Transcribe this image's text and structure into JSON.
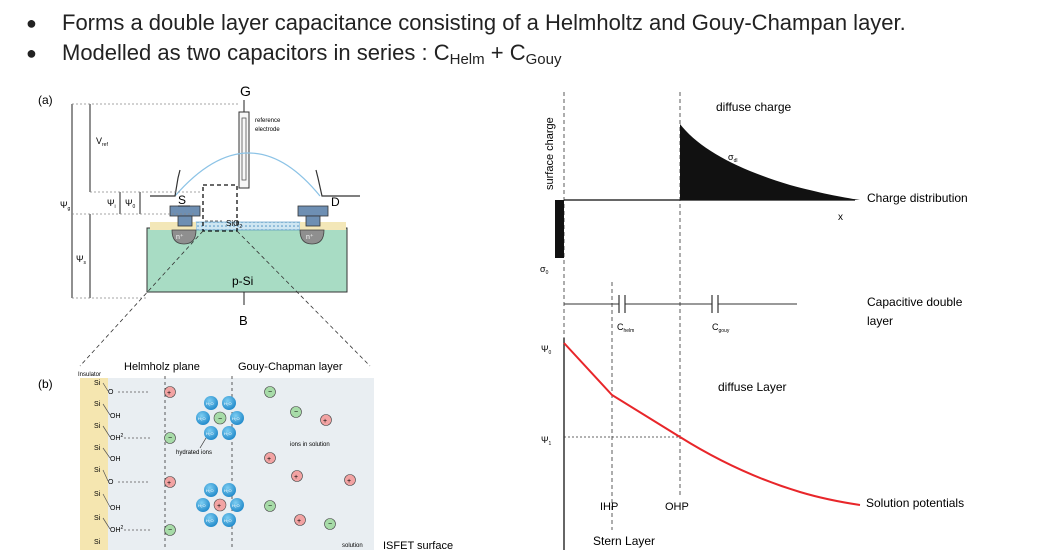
{
  "bullets": [
    {
      "text": "Forms a double layer capacitance consisting of a Helmholtz and Gouy-Champan layer."
    },
    {
      "text_prefix": "Modelled as two capacitors in series : C",
      "sub1": "Helm",
      "mid": " + C",
      "sub2": "Gouy"
    }
  ],
  "panel_a": {
    "label": "(a)",
    "gate": "G",
    "ref_electrode": "reference electrode",
    "vref": "V",
    "vref_sub": "ref",
    "psi_g": "Ψ",
    "psi_g_sub": "g",
    "psi_i": "Ψ",
    "psi_i_sub": "i",
    "psi_0": "Ψ",
    "psi_0_sub": "0",
    "psi_s": "Ψ",
    "psi_s_sub": "s",
    "source": "S",
    "drain": "D",
    "oxide": "SiO",
    "oxide_sub": "2",
    "n_left": "n⁺",
    "n_right": "n⁺",
    "substrate": "p-Si",
    "bulk": "B"
  },
  "panel_b": {
    "label": "(b)",
    "insulator": "Insulator",
    "helmholtz": "Helmholz plane",
    "gouy": "Gouy-Chapman layer",
    "hydrated": "hydrated ions",
    "ions": "ions in solution",
    "solution": "solution",
    "isfet": "ISFET surface",
    "si": "Si",
    "oh": "OH",
    "oh2": "OH",
    "oh2_sub": "2",
    "o": "O",
    "water": "H₂O"
  },
  "panel_c": {
    "surface_charge": "surface charge",
    "diffuse_charge": "diffuse charge",
    "sigma_dl": "σ",
    "sigma_dl_sub": "dl",
    "sigma_0": "σ",
    "sigma_0_sub": "0",
    "x": "x",
    "charge_distribution": "Charge distribution",
    "c_helm": "C",
    "c_helm_sub": "helm",
    "c_gouy": "C",
    "c_gouy_sub": "gouy",
    "capacitive_1": "Capacitive double",
    "capacitive_2": "layer",
    "psi_0": "Ψ",
    "psi_0_sub": "0",
    "psi_1": "Ψ",
    "psi_1_sub": "1",
    "diffuse_layer": "diffuse Layer",
    "ihp": "IHP",
    "ohp": "OHP",
    "stern": "Stern Layer",
    "solution_potentials": "Solution potentials"
  },
  "colors": {
    "substrate": "#a8dcc4",
    "contact": "#6e8fb3",
    "oxide": "#f3e7b8",
    "insulator": "#f5e6b0",
    "solution": "#e9eef2",
    "potential": "#e8262a",
    "ion_pos": "#f2a3a3",
    "ion_neg": "#a7dba8",
    "water": "#2f9fd8"
  }
}
